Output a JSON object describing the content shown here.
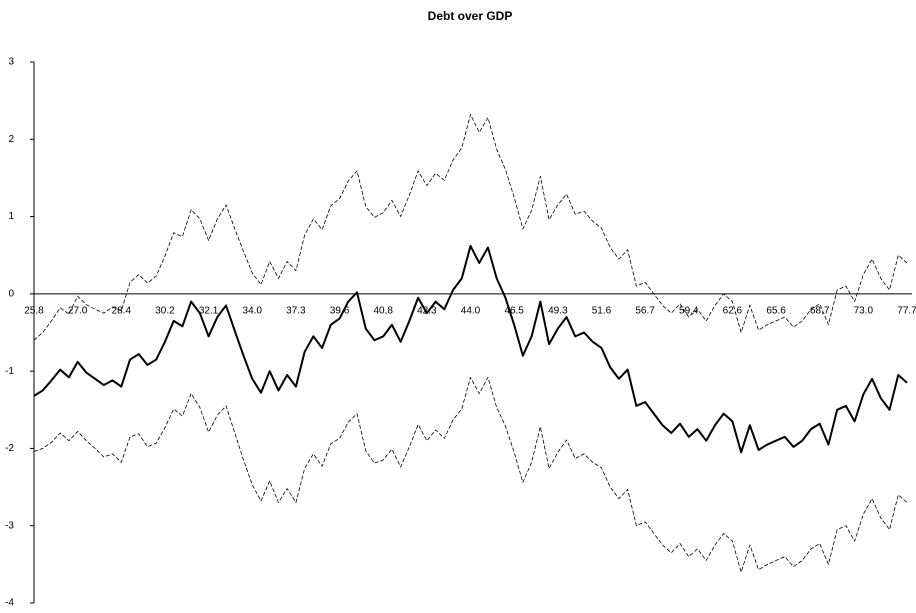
{
  "chart_data": {
    "type": "line",
    "title": "Debt over GDP",
    "categories": [
      "25.8",
      null,
      null,
      null,
      null,
      "27.0",
      null,
      null,
      null,
      null,
      "28.4",
      null,
      null,
      null,
      null,
      "30.2",
      null,
      null,
      null,
      null,
      "32.1",
      null,
      null,
      null,
      null,
      "34.0",
      null,
      null,
      null,
      null,
      "37.3",
      null,
      null,
      null,
      null,
      "39.6",
      null,
      null,
      null,
      null,
      "40.8",
      null,
      null,
      null,
      null,
      "42.3",
      null,
      null,
      null,
      null,
      "44.0",
      null,
      null,
      null,
      null,
      "46.5",
      null,
      null,
      null,
      null,
      "49.3",
      null,
      null,
      null,
      null,
      "51.6",
      null,
      null,
      null,
      null,
      "56.7",
      null,
      null,
      null,
      null,
      "59.4",
      null,
      null,
      null,
      null,
      "62.6",
      null,
      null,
      null,
      null,
      "65.6",
      null,
      null,
      null,
      null,
      "68.7",
      null,
      null,
      null,
      null,
      "73.0",
      null,
      null,
      null,
      null,
      "77.7"
    ],
    "series": [
      {
        "color": "#000000",
        "line_style": "solid",
        "values": [
          -1.32,
          -1.25,
          -1.12,
          -0.98,
          -1.08,
          -0.88,
          -1.02,
          -1.1,
          -1.18,
          -1.12,
          -1.2,
          -0.85,
          -0.78,
          -0.92,
          -0.85,
          -0.62,
          -0.35,
          -0.42,
          -0.1,
          -0.25,
          -0.55,
          -0.3,
          -0.15,
          -0.48,
          -0.8,
          -1.1,
          -1.28,
          -1.0,
          -1.25,
          -1.05,
          -1.2,
          -0.75,
          -0.55,
          -0.7,
          -0.4,
          -0.32,
          -0.1,
          0.02,
          -0.45,
          -0.6,
          -0.55,
          -0.4,
          -0.62,
          -0.35,
          -0.05,
          -0.25,
          -0.1,
          -0.2,
          0.05,
          0.2,
          0.62,
          0.4,
          0.6,
          0.2,
          -0.05,
          -0.4,
          -0.8,
          -0.55,
          -0.1,
          -0.65,
          -0.45,
          -0.3,
          -0.55,
          -0.5,
          -0.62,
          -0.7,
          -0.95,
          -1.1,
          -0.98,
          -1.45,
          -1.4,
          -1.55,
          -1.7,
          -1.8,
          -1.68,
          -1.85,
          -1.75,
          -1.9,
          -1.7,
          -1.55,
          -1.65,
          -2.05,
          -1.7,
          -2.02,
          -1.95,
          -1.9,
          -1.85,
          -1.98,
          -1.9,
          -1.75,
          -1.68,
          -1.95,
          -1.5,
          -1.45,
          -1.65,
          -1.3,
          -1.1,
          -1.35,
          -1.5,
          -1.05,
          -1.15
        ]
      },
      {
        "color": "#000000",
        "line_style": "dashed",
        "values": [
          -0.6,
          -0.5,
          -0.35,
          -0.18,
          -0.26,
          -0.03,
          -0.14,
          -0.2,
          -0.25,
          -0.17,
          -0.22,
          0.15,
          0.25,
          0.14,
          0.23,
          0.49,
          0.79,
          0.74,
          1.09,
          0.97,
          0.69,
          0.97,
          1.15,
          0.84,
          0.55,
          0.27,
          0.12,
          0.42,
          0.2,
          0.42,
          0.3,
          0.76,
          0.97,
          0.83,
          1.14,
          1.23,
          1.46,
          1.59,
          1.13,
          0.99,
          1.05,
          1.21,
          1.0,
          1.28,
          1.59,
          1.4,
          1.56,
          1.47,
          1.73,
          1.89,
          2.32,
          2.09,
          2.28,
          1.87,
          1.61,
          1.25,
          0.84,
          1.08,
          1.52,
          0.96,
          1.15,
          1.29,
          1.03,
          1.07,
          0.94,
          0.85,
          0.6,
          0.45,
          0.57,
          0.1,
          0.15,
          0.0,
          -0.15,
          -0.25,
          -0.13,
          -0.3,
          -0.2,
          -0.35,
          -0.15,
          0.0,
          -0.1,
          -0.5,
          -0.15,
          -0.47,
          -0.4,
          -0.35,
          -0.3,
          -0.43,
          -0.35,
          -0.2,
          -0.13,
          -0.4,
          0.05,
          0.1,
          -0.1,
          0.25,
          0.45,
          0.2,
          0.05,
          0.5,
          0.4
        ]
      },
      {
        "color": "#000000",
        "line_style": "dashed",
        "values": [
          -2.04,
          -2.0,
          -1.92,
          -1.8,
          -1.9,
          -1.78,
          -1.9,
          -2.0,
          -2.11,
          -2.07,
          -2.18,
          -1.85,
          -1.81,
          -1.98,
          -1.93,
          -1.73,
          -1.49,
          -1.58,
          -1.29,
          -1.47,
          -1.79,
          -1.57,
          -1.45,
          -1.8,
          -2.15,
          -2.47,
          -2.68,
          -2.42,
          -2.7,
          -2.52,
          -2.7,
          -2.26,
          -2.07,
          -2.23,
          -1.94,
          -1.87,
          -1.66,
          -1.55,
          -2.03,
          -2.19,
          -2.15,
          -2.01,
          -2.24,
          -1.98,
          -1.69,
          -1.9,
          -1.76,
          -1.87,
          -1.63,
          -1.49,
          -1.08,
          -1.29,
          -1.08,
          -1.47,
          -1.71,
          -2.05,
          -2.44,
          -2.18,
          -1.72,
          -2.26,
          -2.05,
          -1.89,
          -2.13,
          -2.07,
          -2.18,
          -2.25,
          -2.5,
          -2.65,
          -2.53,
          -3.0,
          -2.95,
          -3.1,
          -3.25,
          -3.35,
          -3.23,
          -3.4,
          -3.3,
          -3.45,
          -3.25,
          -3.1,
          -3.2,
          -3.6,
          -3.25,
          -3.57,
          -3.5,
          -3.45,
          -3.4,
          -3.53,
          -3.45,
          -3.3,
          -3.23,
          -3.5,
          -3.05,
          -3.0,
          -3.2,
          -2.85,
          -2.65,
          -2.9,
          -3.05,
          -2.6,
          -2.7
        ]
      }
    ],
    "ylim": [
      -4,
      3
    ],
    "yticks": [
      -4,
      -3,
      -2,
      -1,
      0,
      1,
      2,
      3
    ]
  }
}
